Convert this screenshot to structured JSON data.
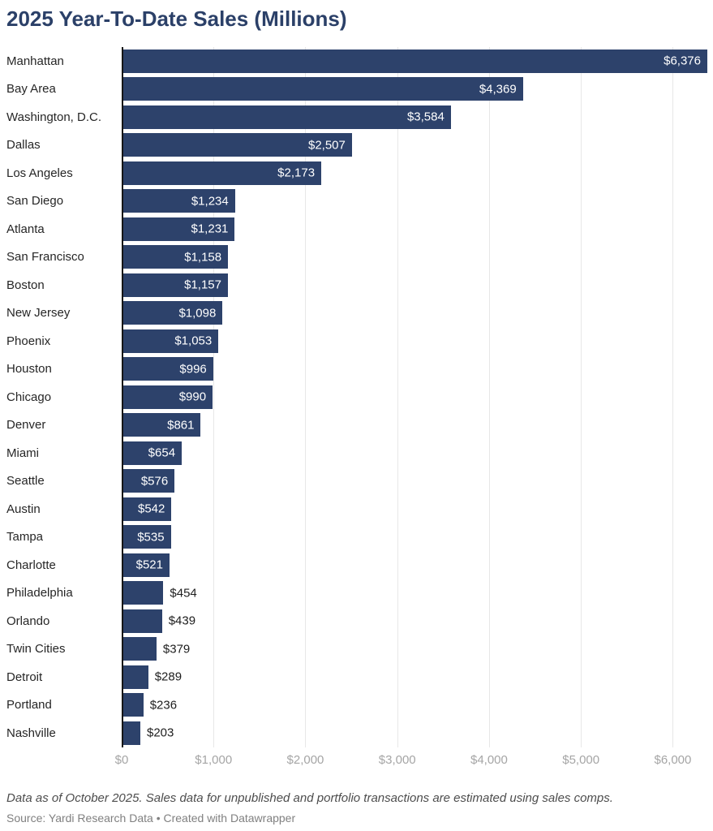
{
  "chart_data": {
    "type": "bar",
    "orientation": "horizontal",
    "title": "2025 Year-To-Date Sales (Millions)",
    "categories": [
      "Manhattan",
      "Bay Area",
      "Washington, D.C.",
      "Dallas",
      "Los Angeles",
      "San Diego",
      "Atlanta",
      "San Francisco",
      "Boston",
      "New Jersey",
      "Phoenix",
      "Houston",
      "Chicago",
      "Denver",
      "Miami",
      "Seattle",
      "Austin",
      "Tampa",
      "Charlotte",
      "Philadelphia",
      "Orlando",
      "Twin Cities",
      "Detroit",
      "Portland",
      "Nashville"
    ],
    "values": [
      6376,
      4369,
      3584,
      2507,
      2173,
      1234,
      1231,
      1158,
      1157,
      1098,
      1053,
      996,
      990,
      861,
      654,
      576,
      542,
      535,
      521,
      454,
      439,
      379,
      289,
      236,
      203
    ],
    "value_labels": [
      "$6,376",
      "$4,369",
      "$3,584",
      "$2,507",
      "$2,173",
      "$1,234",
      "$1,231",
      "$1,158",
      "$1,157",
      "$1,098",
      "$1,053",
      "$996",
      "$990",
      "$861",
      "$654",
      "$576",
      "$542",
      "$535",
      "$521",
      "$454",
      "$439",
      "$379",
      "$289",
      "$236",
      "$203"
    ],
    "xlim": [
      0,
      6376
    ],
    "x_tick_values": [
      0,
      1000,
      2000,
      3000,
      4000,
      5000,
      6000
    ],
    "x_tick_labels": [
      "$0",
      "$1,000",
      "$2,000",
      "$3,000",
      "$4,000",
      "$5,000",
      "$6,000"
    ],
    "grid": true,
    "legend": "none",
    "inside_label_threshold": 500,
    "colors": {
      "bar": "#2d426b",
      "title": "#2b4068",
      "category_label": "#262626",
      "value_inside": "#ffffff",
      "value_outside": "#1e1e1e",
      "gridline": "#e7e7e7",
      "zero_axis": "#161616",
      "tick_label": "#a5a5a5"
    }
  },
  "footer": {
    "note": "Data as of October 2025. Sales data for unpublished and portfolio transactions are estimated using sales comps.",
    "source_label": "Source: ",
    "source_name": "Yardi Research Data",
    "separator": " • ",
    "attribution": "Created with Datawrapper"
  }
}
